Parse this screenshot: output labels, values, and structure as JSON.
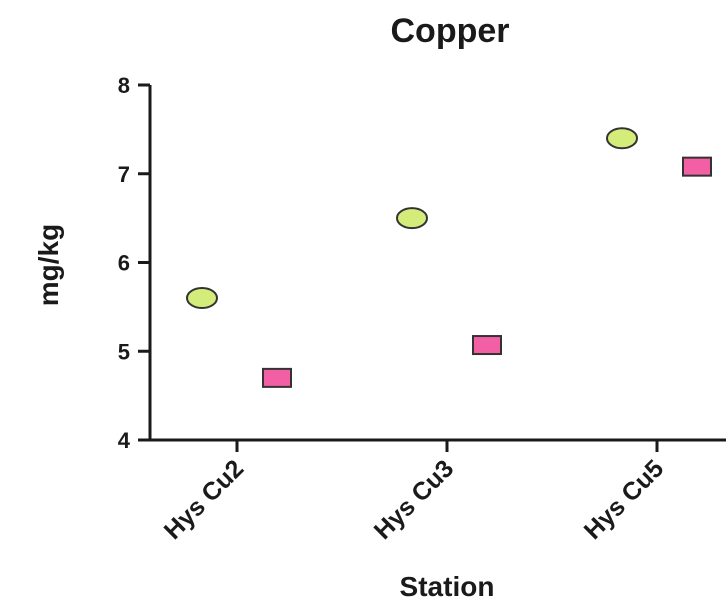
{
  "chart_data": {
    "type": "scatter",
    "title": "Copper",
    "xlabel": "Station",
    "ylabel": "mg/kg",
    "categories": [
      "Hys Cu2",
      "Hys Cu3",
      "Hys Cu5"
    ],
    "ylim": [
      4,
      8
    ],
    "yticks": [
      "4",
      "5",
      "6",
      "7",
      "8"
    ],
    "grid": false,
    "series": [
      {
        "marker": "circle",
        "color": "#d4ec7a",
        "values": [
          5.6,
          6.5,
          7.4
        ]
      },
      {
        "marker": "square",
        "color": "#f25fa4",
        "values": [
          4.7,
          5.07,
          7.08
        ]
      }
    ]
  }
}
